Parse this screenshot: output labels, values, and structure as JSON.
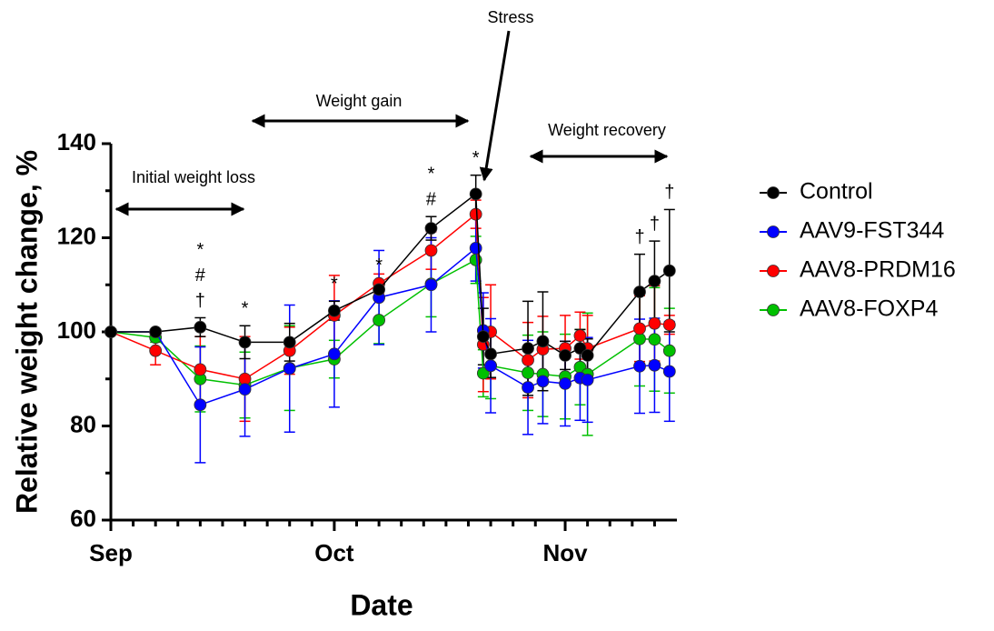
{
  "chart_data": {
    "type": "line",
    "xlabel": "Date",
    "ylabel": "Relative weight change, %",
    "x": [
      0,
      6,
      12,
      18,
      24,
      30,
      36,
      43,
      49,
      50,
      51,
      56,
      58,
      61,
      63,
      64,
      71,
      73,
      75
    ],
    "xlim": [
      0,
      76
    ],
    "xticks": [
      {
        "value": 0,
        "label": "Sep"
      },
      {
        "value": 30,
        "label": "Oct"
      },
      {
        "value": 61,
        "label": "Nov"
      }
    ],
    "xminorticks": [
      3,
      6,
      9,
      12,
      15,
      18,
      21,
      24,
      27,
      33,
      36,
      39,
      42,
      45,
      48,
      51,
      54,
      57,
      64,
      67,
      70,
      73
    ],
    "ylim": [
      60,
      140
    ],
    "yticks": [
      60,
      80,
      100,
      120,
      140
    ],
    "yminorticks": [
      70,
      90,
      110,
      130
    ],
    "series": [
      {
        "name": "Control",
        "color": "#000000",
        "values": [
          100,
          100,
          101,
          97.8,
          97.8,
          104.5,
          109,
          122,
          129.3,
          99,
          95.3,
          96.5,
          98,
          95,
          96.5,
          95,
          108.5,
          110.8,
          113
        ],
        "errors": [
          0,
          0.5,
          2,
          3.5,
          4,
          2,
          1.5,
          2.5,
          4,
          6,
          5,
          10,
          10.5,
          3,
          4,
          3.5,
          8,
          8.5,
          13
        ]
      },
      {
        "name": "AAV9-FST344",
        "color": "#0000ff",
        "values": [
          100,
          100,
          84.5,
          87.8,
          92.2,
          95.3,
          107.3,
          110,
          117.8,
          100.3,
          92.8,
          88.2,
          89.5,
          89,
          90.2,
          89.8,
          92.7,
          92.9,
          91.6
        ],
        "errors": [
          0,
          0,
          12.3,
          10,
          13.5,
          11.3,
          10,
          10,
          7,
          8,
          10,
          10,
          9,
          9,
          9,
          9,
          10,
          10,
          10.6
        ]
      },
      {
        "name": "AAV8-PRDM16",
        "color": "#ff0000",
        "values": [
          100,
          96,
          92,
          90,
          96,
          103.5,
          110.3,
          117.3,
          125,
          97.3,
          100,
          94,
          96.3,
          96.5,
          99.2,
          96.5,
          100.7,
          101.8,
          101.5
        ],
        "errors": [
          0,
          3,
          7,
          9,
          5,
          8.5,
          2,
          4,
          3,
          10,
          10,
          8,
          7,
          7,
          5,
          7,
          7,
          8,
          2
        ]
      },
      {
        "name": "AAV8-FOXP4",
        "color": "#00c000",
        "values": [
          100,
          98.8,
          90,
          88.7,
          92.3,
          94.2,
          102.5,
          110.2,
          115.3,
          91.2,
          92.8,
          91.3,
          91,
          90.5,
          92.5,
          91,
          98.5,
          98.4,
          96
        ],
        "errors": [
          0,
          1,
          7,
          7,
          9,
          4,
          5,
          7,
          5,
          5,
          7,
          8,
          9,
          9,
          8,
          13,
          10,
          11,
          9
        ]
      }
    ],
    "markers": [
      {
        "x": 12,
        "labels": [
          "*",
          "#",
          "†"
        ]
      },
      {
        "x": 18,
        "labels": [
          "*"
        ]
      },
      {
        "x": 30,
        "labels": [
          "*"
        ]
      },
      {
        "x": 36,
        "labels": [
          "*"
        ]
      },
      {
        "x": 43,
        "labels": [
          "*",
          "#"
        ]
      },
      {
        "x": 49,
        "labels": [
          "*"
        ]
      },
      {
        "x": 71,
        "labels": [
          "†"
        ]
      },
      {
        "x": 73,
        "labels": [
          "†"
        ]
      },
      {
        "x": 75,
        "labels": [
          "†"
        ]
      }
    ],
    "phases": {
      "initial": "Initial weight loss",
      "gain": "Weight gain",
      "recovery": "Weight recovery",
      "stress": "Stress"
    }
  }
}
